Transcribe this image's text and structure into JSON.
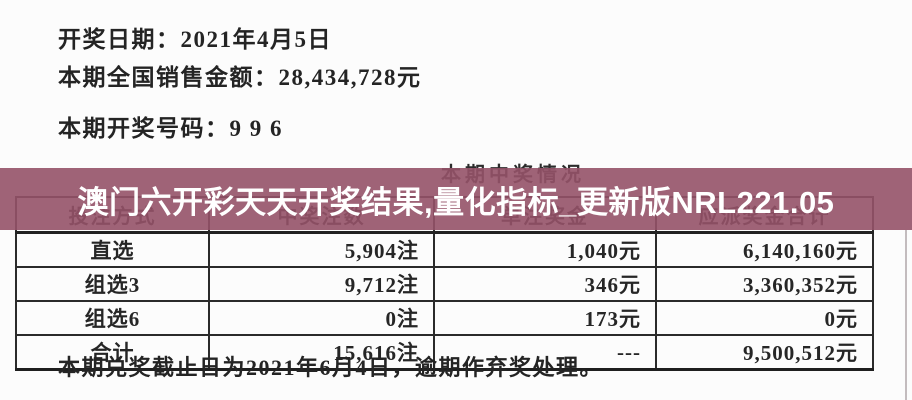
{
  "info": {
    "draw_date": {
      "label": "开奖日期：",
      "value": "2021年4月5日"
    },
    "sales": {
      "label": "本期全国销售金额：",
      "value": "28,434,728元"
    },
    "draw_numbers": {
      "label": "本期开奖号码：",
      "value": "9 9 6"
    }
  },
  "banner": {
    "text": "澳门六开彩天天开奖结果,量化指标_更新版NRL221.05",
    "bg_color": "#955268",
    "text_color": "#ffffff"
  },
  "table": {
    "title": "本期中奖情况",
    "headers": [
      "投注方式",
      "中奖注数",
      "单注奖金",
      "应派奖金合计"
    ],
    "rows": [
      [
        "直选",
        "5,904注",
        "1,040元",
        "6,140,160元"
      ],
      [
        "组选3",
        "9,712注",
        "346元",
        "3,360,352元"
      ],
      [
        "组选6",
        "0注",
        "173元",
        "0元"
      ],
      [
        "合计",
        "15,616注",
        "---",
        "9,500,512元"
      ]
    ],
    "footnote": "本期兑奖截止日为2021年6月4日，逾期作弃奖处理。"
  }
}
